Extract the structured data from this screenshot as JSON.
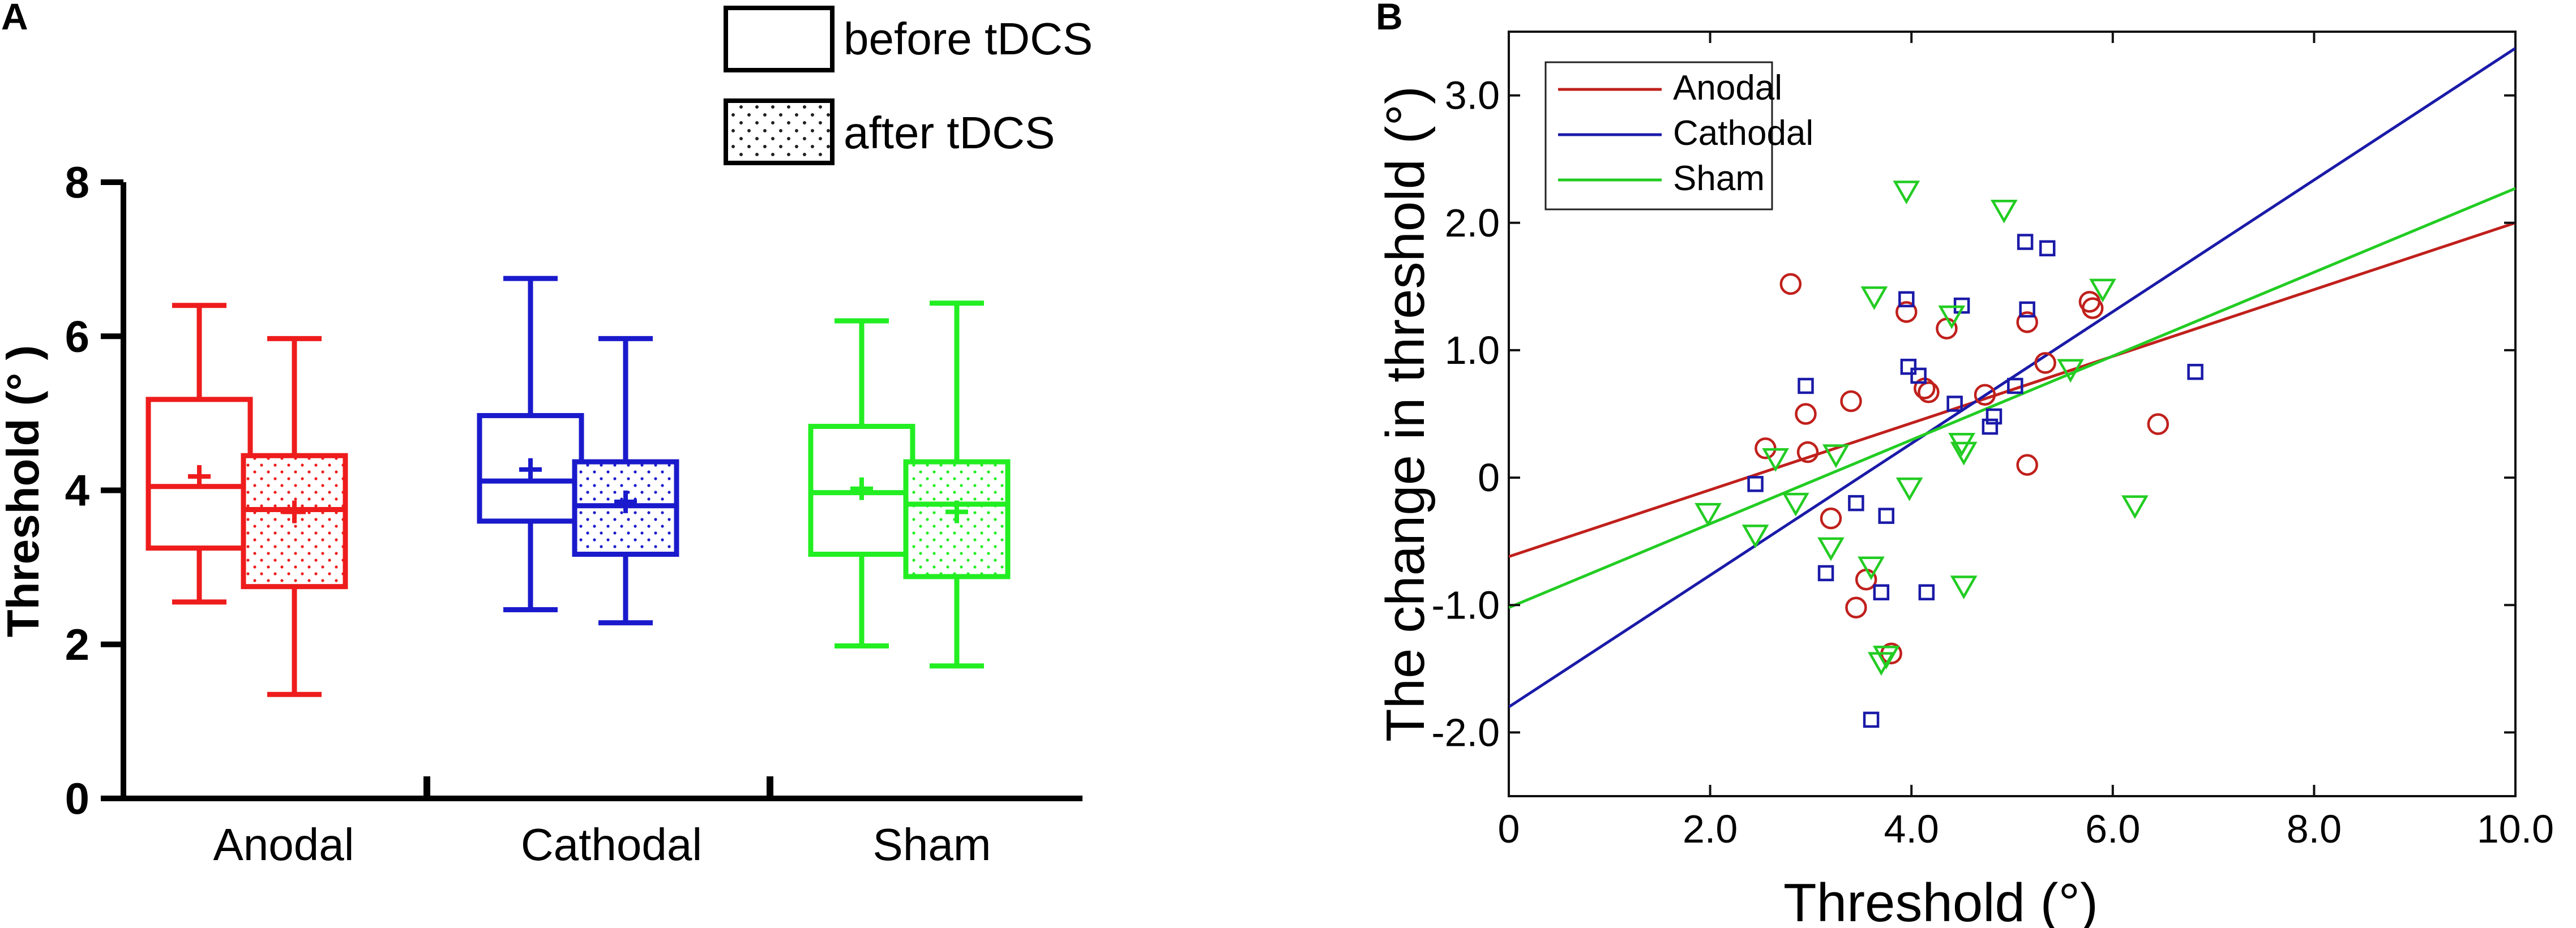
{
  "chart_data": [
    {
      "panel": "A",
      "type": "box",
      "ylabel": "Threshold (° )",
      "ylim": [
        0,
        8
      ],
      "yticks": [
        "0",
        "2",
        "4",
        "6",
        "8"
      ],
      "categories": [
        "Anodal",
        "Cathodal",
        "Sham"
      ],
      "legend": {
        "before_label": "before tDCS",
        "after_label": "after tDCS",
        "position": "top"
      },
      "colors": {
        "Anodal": "#ee1c1c",
        "Cathodal": "#1a1acc",
        "Sham": "#22ee22"
      },
      "boxes": [
        {
          "group": "Anodal",
          "phase": "before",
          "whisker_low": 2.55,
          "q1": 3.25,
          "median": 4.05,
          "mean": 4.18,
          "q3": 5.18,
          "whisker_high": 6.4
        },
        {
          "group": "Anodal",
          "phase": "after",
          "whisker_low": 1.35,
          "q1": 2.75,
          "median": 3.75,
          "mean": 3.72,
          "q3": 4.45,
          "whisker_high": 5.97
        },
        {
          "group": "Cathodal",
          "phase": "before",
          "whisker_low": 2.45,
          "q1": 3.6,
          "median": 4.12,
          "mean": 4.27,
          "q3": 4.97,
          "whisker_high": 6.75
        },
        {
          "group": "Cathodal",
          "phase": "after",
          "whisker_low": 2.28,
          "q1": 3.17,
          "median": 3.8,
          "mean": 3.85,
          "q3": 4.37,
          "whisker_high": 5.97
        },
        {
          "group": "Sham",
          "phase": "before",
          "whisker_low": 1.98,
          "q1": 3.17,
          "median": 3.97,
          "mean": 4.02,
          "q3": 4.83,
          "whisker_high": 6.2
        },
        {
          "group": "Sham",
          "phase": "after",
          "whisker_low": 1.72,
          "q1": 2.88,
          "median": 3.82,
          "mean": 3.72,
          "q3": 4.37,
          "whisker_high": 6.43
        }
      ]
    },
    {
      "panel": "B",
      "type": "scatter",
      "xlabel": "Threshold (°)",
      "ylabel": "The change in threshold (°)",
      "xlim": [
        0,
        10
      ],
      "ylim": [
        -2.5,
        3.5
      ],
      "xticks": [
        "0",
        "2.0",
        "4.0",
        "6.0",
        "8.0",
        "10.0"
      ],
      "yticks": [
        "-2.0",
        "-1.0",
        "0",
        "1.0",
        "2.0",
        "3.0"
      ],
      "legend_position": "top-left",
      "series": [
        {
          "name": "Anodal",
          "marker": "circle",
          "color": "#c0201c",
          "fit": [
            [
              0,
              -0.62
            ],
            [
              10,
              2.0
            ]
          ],
          "points": [
            [
              2.55,
              0.23
            ],
            [
              2.8,
              1.52
            ],
            [
              2.95,
              0.5
            ],
            [
              2.97,
              0.2
            ],
            [
              3.2,
              -0.32
            ],
            [
              3.4,
              0.6
            ],
            [
              3.45,
              -1.02
            ],
            [
              3.55,
              -0.8
            ],
            [
              3.8,
              -1.38
            ],
            [
              3.95,
              1.3
            ],
            [
              4.13,
              0.7
            ],
            [
              4.17,
              0.67
            ],
            [
              4.35,
              1.17
            ],
            [
              4.73,
              0.65
            ],
            [
              5.15,
              0.1
            ],
            [
              5.15,
              1.22
            ],
            [
              5.33,
              0.9
            ],
            [
              5.77,
              1.38
            ],
            [
              5.8,
              1.33
            ],
            [
              6.45,
              0.42
            ]
          ]
        },
        {
          "name": "Cathodal",
          "marker": "square",
          "color": "#1a1aa8",
          "fit": [
            [
              0,
              -1.8
            ],
            [
              10,
              3.37
            ]
          ],
          "points": [
            [
              2.45,
              -0.05
            ],
            [
              2.95,
              0.72
            ],
            [
              3.15,
              -0.75
            ],
            [
              3.45,
              -0.2
            ],
            [
              3.6,
              -1.9
            ],
            [
              3.7,
              -0.9
            ],
            [
              3.75,
              -0.3
            ],
            [
              3.95,
              1.4
            ],
            [
              3.97,
              0.87
            ],
            [
              4.07,
              0.8
            ],
            [
              4.15,
              -0.9
            ],
            [
              4.43,
              0.58
            ],
            [
              4.5,
              1.35
            ],
            [
              4.78,
              0.4
            ],
            [
              4.82,
              0.48
            ],
            [
              5.03,
              0.72
            ],
            [
              5.13,
              1.85
            ],
            [
              5.15,
              1.32
            ],
            [
              5.35,
              1.8
            ],
            [
              6.82,
              0.83
            ]
          ]
        },
        {
          "name": "Sham",
          "marker": "triangle-down",
          "color": "#22cc22",
          "fit": [
            [
              0,
              -1.02
            ],
            [
              10,
              2.27
            ]
          ],
          "points": [
            [
              1.98,
              -0.28
            ],
            [
              2.45,
              -0.45
            ],
            [
              2.65,
              0.15
            ],
            [
              2.85,
              -0.2
            ],
            [
              3.2,
              -0.55
            ],
            [
              3.25,
              0.18
            ],
            [
              3.6,
              -0.7
            ],
            [
              3.63,
              1.42
            ],
            [
              3.7,
              -1.45
            ],
            [
              3.75,
              -1.4
            ],
            [
              3.98,
              -0.08
            ],
            [
              3.95,
              2.25
            ],
            [
              4.4,
              1.27
            ],
            [
              4.5,
              0.27
            ],
            [
              4.52,
              0.2
            ],
            [
              4.52,
              -0.85
            ],
            [
              4.92,
              2.1
            ],
            [
              5.58,
              0.85
            ],
            [
              5.9,
              1.48
            ],
            [
              6.22,
              -0.22
            ]
          ]
        }
      ]
    }
  ]
}
